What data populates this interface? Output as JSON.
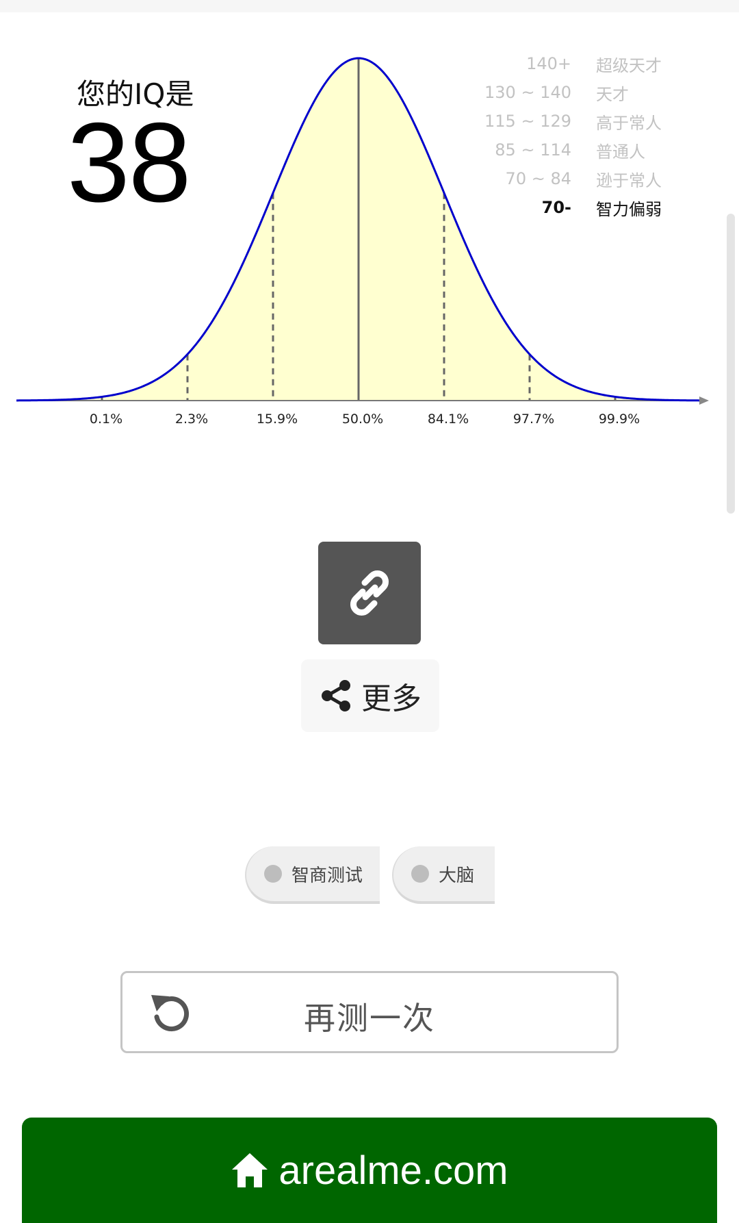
{
  "result": {
    "title": "您的IQ是",
    "score": "38"
  },
  "legend": [
    {
      "range": "140+",
      "label": "超级天才",
      "active": false
    },
    {
      "range": "130 ~ 140",
      "label": "天才",
      "active": false
    },
    {
      "range": "115 ~ 129",
      "label": "高于常人",
      "active": false
    },
    {
      "range": "85 ~ 114",
      "label": "普通人",
      "active": false
    },
    {
      "range": "70 ~ 84",
      "label": "逊于常人",
      "active": false
    },
    {
      "range": "70-",
      "label": "智力偏弱",
      "active": true
    }
  ],
  "chart_data": {
    "type": "area",
    "title": "",
    "xlabel": "",
    "ylabel": "",
    "curve": "normal distribution",
    "percentiles": [
      "0.1%",
      "2.3%",
      "15.9%",
      "50.0%",
      "84.1%",
      "97.7%",
      "99.9%"
    ],
    "sigma_marks": [
      -3,
      -2,
      -1,
      0,
      1,
      2,
      3
    ],
    "colors": {
      "curve": "#0000cc",
      "fill": "#ffffd0",
      "axis": "#777777"
    }
  },
  "actions": {
    "more_label": "更多"
  },
  "tags": [
    "智商测试",
    "大脑"
  ],
  "retry": {
    "label": "再测一次"
  },
  "footer": {
    "site": "arealme.com",
    "color": "#006600"
  },
  "icons": {
    "link": "link-icon",
    "share": "share-icon",
    "retry": "refresh-icon",
    "home": "home-icon"
  }
}
